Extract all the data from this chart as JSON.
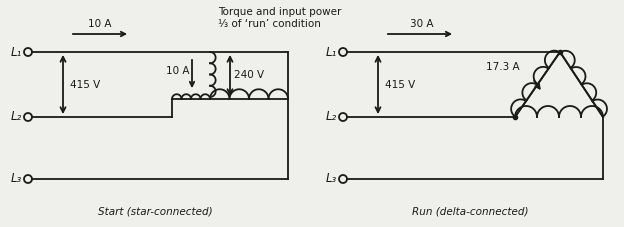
{
  "bg_color": "#efefeb",
  "line_color": "#1a1a1a",
  "title_left": "Torque and input power\n⅓ of ‘run’ condition",
  "label_left_bottom": "Start (star-connected)",
  "label_right_bottom": "Run (delta-connected)",
  "current_left": "10 A",
  "current_right": "30 A",
  "voltage_left1": "415 V",
  "voltage_left2": "415 V",
  "winding_voltage": "240 V",
  "winding_current_left": "10 A",
  "winding_current_right": "17.3 A",
  "L1": "L₁",
  "L2": "L₂",
  "L3": "L₃"
}
